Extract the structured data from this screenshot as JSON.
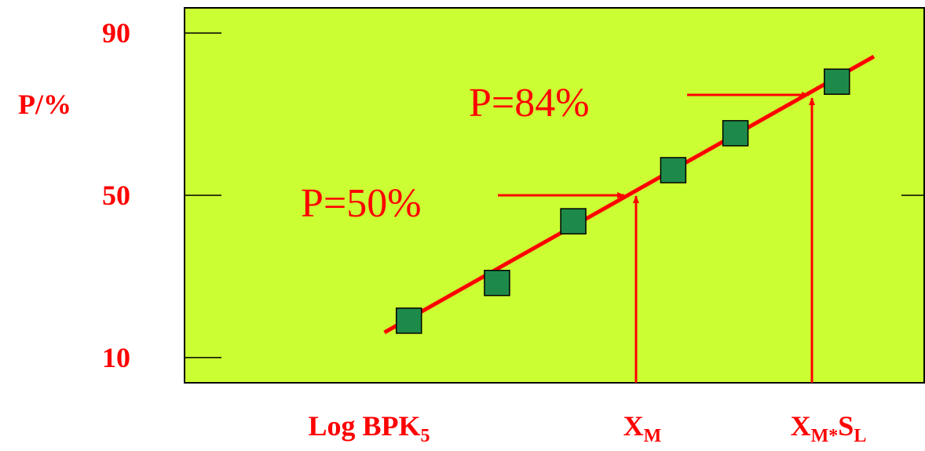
{
  "chart_data": {
    "type": "scatter",
    "ylabel": "P/%",
    "yticks": [
      10,
      50,
      90
    ],
    "ylim": [
      3.8,
      96.2
    ],
    "xlim": [
      0,
      100
    ],
    "x": [
      30.3,
      42.2,
      52.5,
      66.0,
      74.4,
      88.1
    ],
    "values": [
      19.1,
      28.4,
      43.6,
      56.2,
      65.3,
      78.0
    ],
    "color": "#1e8a4a",
    "background": "#ccff33",
    "fit_line": {
      "color": "#ff0000",
      "x": [
        27.0,
        93.1
      ],
      "values": [
        16.2,
        84.2
      ]
    },
    "annotations": [
      "P=50%",
      "P=84%"
    ],
    "x_labels": [
      [
        [
          "Log BPK",
          "5"
        ]
      ],
      [
        [
          "X",
          "M"
        ]
      ],
      [
        [
          "X",
          "M*"
        ],
        [
          "S",
          "L"
        ]
      ]
    ]
  }
}
